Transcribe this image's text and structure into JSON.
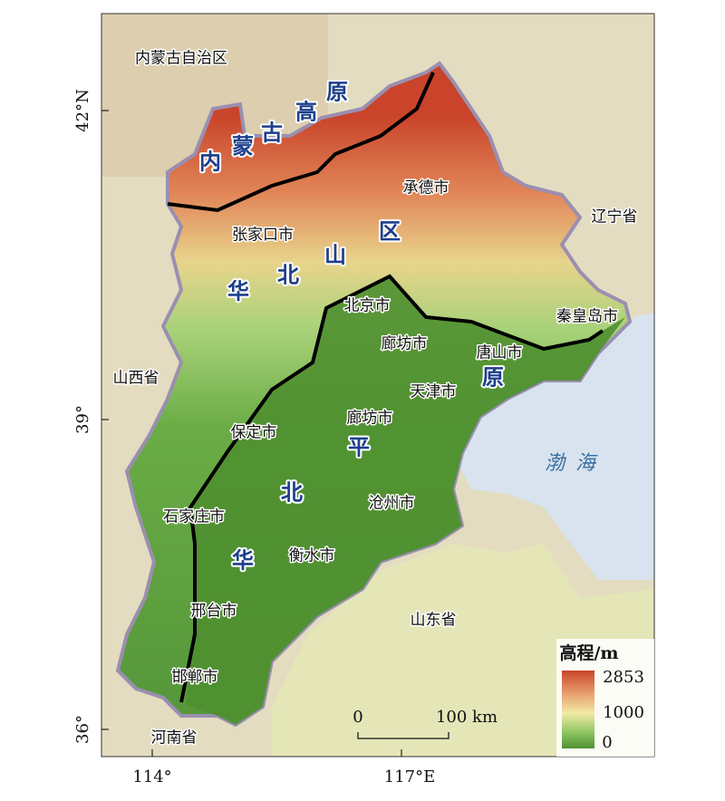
{
  "map": {
    "provinces": [
      "内蒙古自治区",
      "辽宁省",
      "山西省",
      "山东省",
      "河南省"
    ],
    "sea": "渤海",
    "landforms": {
      "plateau": [
        "内",
        "蒙",
        "古",
        "高",
        "原"
      ],
      "mountains": [
        "华",
        "北",
        "山",
        "区"
      ],
      "plain": [
        "华",
        "北",
        "平",
        "原"
      ]
    },
    "cities": [
      "承德市",
      "张家口市",
      "北京市",
      "秦皇岛市",
      "廊坊市",
      "唐山市",
      "天津市",
      "廊坊市",
      "保定市",
      "沧州市",
      "石家庄市",
      "衡水市",
      "邢台市",
      "邯郸市"
    ],
    "axes": {
      "lat_ticks": [
        "42°N",
        "39°",
        "36°"
      ],
      "lon_ticks": [
        "114°",
        "117°E"
      ]
    },
    "legend": {
      "title": "高程/m",
      "ticks": [
        2853,
        1000,
        0
      ]
    },
    "scale_bar": {
      "labels": [
        "0",
        "100 km"
      ]
    }
  }
}
